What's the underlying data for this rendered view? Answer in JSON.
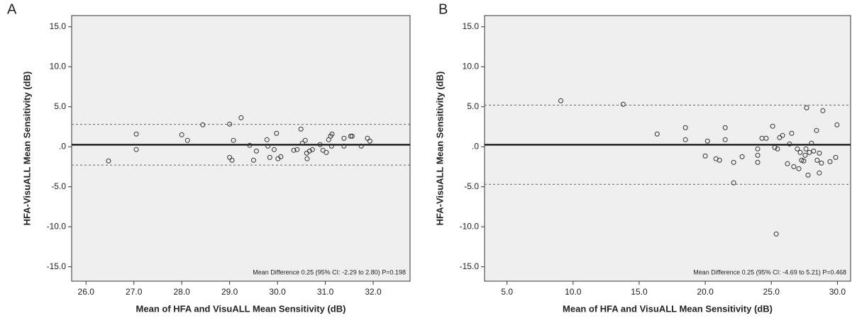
{
  "chart_data": [
    {
      "type": "scatter",
      "panel": "A",
      "x_label": "Mean of HFA and VisuALL Mean Sensitivity (dB)",
      "y_label": "HFA-VisuALL Mean Sensitivity (dB)",
      "annotation": "Mean Difference 0.25 (95% CI: -2.29 to 2.80) P=0.198",
      "xlim": [
        25.7,
        32.77
      ],
      "ylim": [
        -16.8,
        16.4
      ],
      "xticks": [
        {
          "value": 26,
          "label": "26.0"
        },
        {
          "value": 27,
          "label": "27.0"
        },
        {
          "value": 28,
          "label": "28.0"
        },
        {
          "value": 29,
          "label": "29.0"
        },
        {
          "value": 30,
          "label": "30.0"
        },
        {
          "value": 31,
          "label": "31.0"
        },
        {
          "value": 32,
          "label": "32.0"
        }
      ],
      "yticks": [
        {
          "value": 15,
          "label": "15.0"
        },
        {
          "value": 10,
          "label": "10.0"
        },
        {
          "value": 5,
          "label": "5.0"
        },
        {
          "value": 0,
          "label": ".0"
        },
        {
          "value": -5,
          "label": "-5.0"
        },
        {
          "value": -10,
          "label": "-10.0"
        },
        {
          "value": -15,
          "label": "-15.0"
        }
      ],
      "mean_difference": 0.25,
      "limits_of_agreement": [
        -2.29,
        2.8
      ],
      "x": [
        26.47,
        27.05,
        27.05,
        28.0,
        28.12,
        28.44,
        29.0,
        29.0,
        29.05,
        29.08,
        29.24,
        29.42,
        29.5,
        29.56,
        29.78,
        29.8,
        29.84,
        29.93,
        29.98,
        30.01,
        30.07,
        30.34,
        30.41,
        30.49,
        30.52,
        30.58,
        30.61,
        30.62,
        30.67,
        30.73,
        30.89,
        30.95,
        31.02,
        31.07,
        31.11,
        31.14,
        31.13,
        31.39,
        31.39,
        31.53,
        31.56,
        31.75,
        31.88,
        31.93
      ],
      "y": [
        -1.77,
        1.59,
        -0.35,
        1.5,
        0.8,
        2.74,
        2.83,
        -1.33,
        -1.68,
        0.8,
        3.63,
        0.18,
        -1.68,
        -0.53,
        0.88,
        0.09,
        -1.33,
        -0.35,
        1.68,
        -1.5,
        -1.24,
        -0.44,
        -0.35,
        2.21,
        0.44,
        0.8,
        -0.8,
        -1.5,
        -0.53,
        -0.35,
        0.27,
        -0.44,
        -0.71,
        0.88,
        1.33,
        1.59,
        0.09,
        1.06,
        0.09,
        1.33,
        1.33,
        0.09,
        1.06,
        0.71
      ]
    },
    {
      "type": "scatter",
      "panel": "B",
      "x_label": "Mean of HFA and VisuALL Mean Sensitivity (dB)",
      "y_label": "HFA-VisuALL Mean Sensitivity (dB)",
      "annotation": "Mean Difference 0.25 (95% CI: -4.69 to 5.21) P=0.468",
      "xlim": [
        3.3,
        31.0
      ],
      "ylim": [
        -16.8,
        16.4
      ],
      "xticks": [
        {
          "value": 5,
          "label": "5.0"
        },
        {
          "value": 10,
          "label": "10.0"
        },
        {
          "value": 15,
          "label": "15.0"
        },
        {
          "value": 20,
          "label": "20.0"
        },
        {
          "value": 25,
          "label": "25.0"
        },
        {
          "value": 30,
          "label": "30.0"
        }
      ],
      "yticks": [
        {
          "value": 15,
          "label": "15.0"
        },
        {
          "value": 10,
          "label": "10.0"
        },
        {
          "value": 5,
          "label": "5.0"
        },
        {
          "value": 0,
          "label": ".0"
        },
        {
          "value": -5,
          "label": "-5.0"
        },
        {
          "value": -10,
          "label": "-10.0"
        },
        {
          "value": -15,
          "label": "-15.0"
        }
      ],
      "mean_difference": 0.25,
      "limits_of_agreement": [
        -4.69,
        5.21
      ],
      "x": [
        9.07,
        13.79,
        16.36,
        18.5,
        18.5,
        20.0,
        20.17,
        20.81,
        21.08,
        21.51,
        21.51,
        22.15,
        22.15,
        22.79,
        23.97,
        23.97,
        23.97,
        24.29,
        24.61,
        25.1,
        25.26,
        25.37,
        25.47,
        25.63,
        25.85,
        26.22,
        26.38,
        26.54,
        26.7,
        26.97,
        27.08,
        27.19,
        27.29,
        27.45,
        27.56,
        27.62,
        27.67,
        27.78,
        27.88,
        28.04,
        28.2,
        28.42,
        28.47,
        28.63,
        28.63,
        28.79,
        28.9,
        29.44,
        29.87,
        29.97
      ],
      "y": [
        5.75,
        5.31,
        1.59,
        2.39,
        0.88,
        -1.15,
        0.71,
        -1.5,
        -1.68,
        2.39,
        0.88,
        -1.95,
        -4.51,
        -1.24,
        -0.27,
        -1.06,
        -1.95,
        1.06,
        1.06,
        2.57,
        -0.09,
        -10.9,
        -0.27,
        1.15,
        1.42,
        -2.12,
        0.35,
        1.68,
        -2.48,
        -0.27,
        -2.74,
        -0.71,
        -1.68,
        -1.77,
        -1.06,
        -0.27,
        4.87,
        -3.54,
        -0.71,
        0.44,
        -0.53,
        2.04,
        -1.68,
        -3.27,
        -0.8,
        -2.04,
        4.51,
        -1.86,
        -1.33,
        2.74
      ]
    }
  ]
}
